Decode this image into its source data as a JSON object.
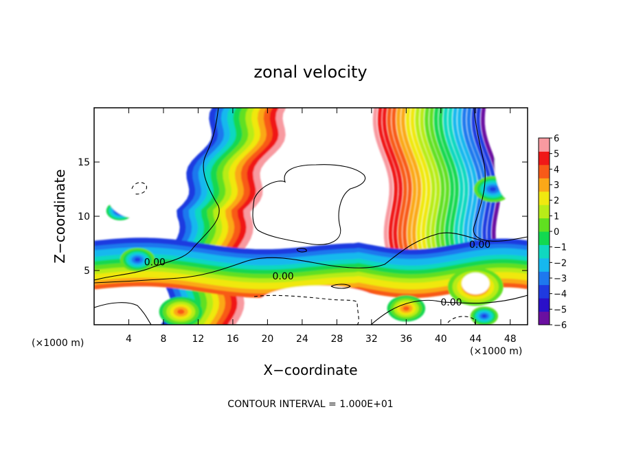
{
  "chart_data": {
    "type": "heatmap",
    "title": "zonal velocity",
    "xlabel": "X−coordinate",
    "ylabel": "Z−coordinate",
    "x_unit_left": "(×1000 m)",
    "x_unit_right": "(×1000 m)",
    "xlim": [
      0,
      50
    ],
    "ylim": [
      0,
      20
    ],
    "x_ticks": [
      4,
      8,
      12,
      16,
      20,
      24,
      28,
      32,
      36,
      40,
      44,
      48
    ],
    "y_ticks": [
      5,
      10,
      15
    ],
    "colorbar": {
      "levels": [
        -6,
        -5,
        -4,
        -3,
        -2,
        -1,
        0,
        1,
        2,
        3,
        4,
        5,
        6
      ],
      "labels": [
        "−6",
        "−5",
        "−4",
        "−3",
        "−2",
        "−1",
        "0",
        "1",
        "2",
        "3",
        "4",
        "5",
        "6"
      ],
      "colors": [
        "#6a0fa0",
        "#2a10c8",
        "#1f3ae0",
        "#1e78ee",
        "#16b8ee",
        "#10d8c0",
        "#12d850",
        "#60e020",
        "#b8ec18",
        "#f0e810",
        "#fba818",
        "#f85a18",
        "#f01818",
        "#f89aa0"
      ]
    },
    "contour_labels": [
      {
        "text": "0.00",
        "x": 7,
        "z": 5.8
      },
      {
        "text": "0.00",
        "x": 21.8,
        "z": 4.5
      },
      {
        "text": "0.00",
        "x": 44.5,
        "z": 7.4
      },
      {
        "text": "0.00",
        "x": 41.2,
        "z": 2.1
      }
    ],
    "note": "CONTOUR INTERVAL = 1.000E+01"
  }
}
